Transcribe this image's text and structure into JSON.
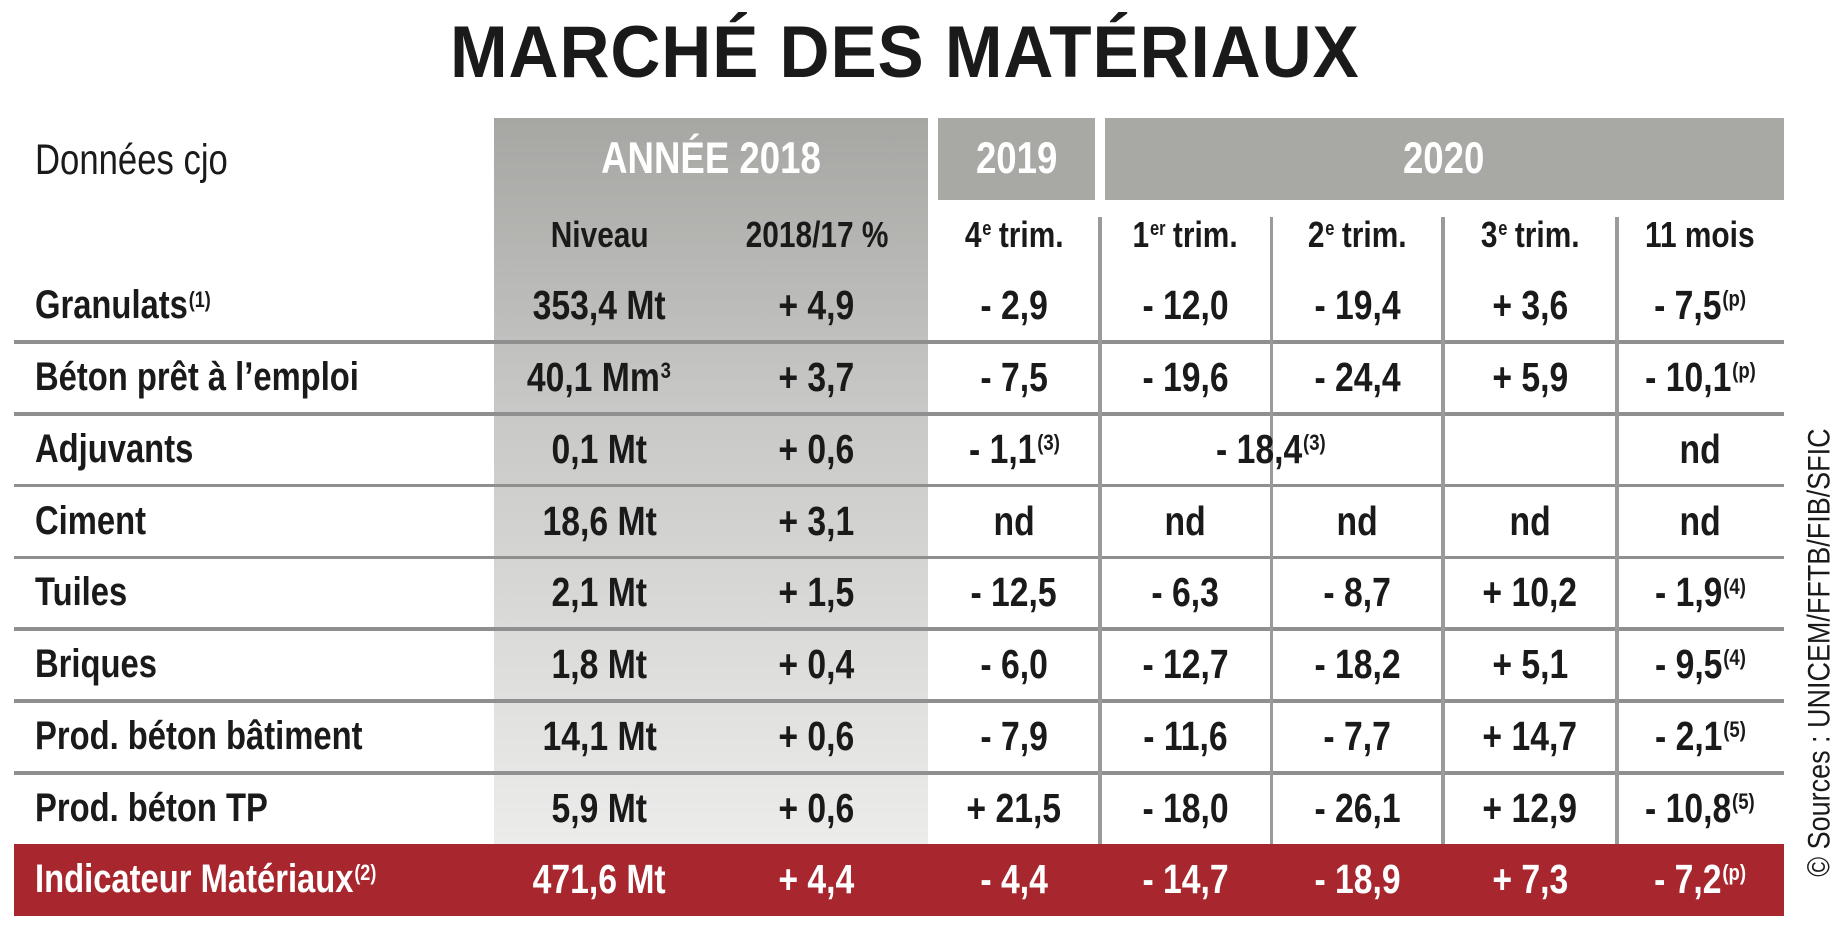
{
  "title": "MARCHÉ DES MATÉRIAUX",
  "corner": "Données cjo",
  "groups": [
    "ANNÉE 2018",
    "2019",
    "2020"
  ],
  "columns": [
    {
      "t": "Niveau"
    },
    {
      "t": "2018/17 %"
    },
    {
      "t": "4",
      "sup": "e",
      "after": "trim."
    },
    {
      "t": "1",
      "sup": "er",
      "after": "trim."
    },
    {
      "t": "2",
      "sup": "e",
      "after": "trim."
    },
    {
      "t": "3",
      "sup": "e",
      "after": "trim."
    },
    {
      "t": "11 mois"
    }
  ],
  "rows": [
    {
      "label": "Granulats",
      "note": "(1)",
      "cells": [
        {
          "t": "353,4 Mt"
        },
        {
          "t": "+ 4,9"
        },
        {
          "t": "- 2,9"
        },
        {
          "t": "- 12,0"
        },
        {
          "t": "- 19,4"
        },
        {
          "t": "+ 3,6"
        },
        {
          "t": "- 7,5",
          "sup": "(p)"
        }
      ]
    },
    {
      "label": "Béton prêt à l’emploi",
      "cells": [
        {
          "t": "40,1 Mm",
          "sup": "3"
        },
        {
          "t": "+ 3,7"
        },
        {
          "t": "- 7,5"
        },
        {
          "t": "- 19,6"
        },
        {
          "t": "- 24,4"
        },
        {
          "t": "+ 5,9"
        },
        {
          "t": "- 10,1",
          "sup": "(p)"
        }
      ]
    },
    {
      "label": "Adjuvants",
      "cells": [
        {
          "t": "0,1 Mt"
        },
        {
          "t": "+ 0,6"
        },
        {
          "t": "- 1,1",
          "sup": "(3)"
        },
        {
          "t": "- 18,4",
          "sup": "(3)",
          "span": 2
        },
        null,
        {
          "t": "nd"
        }
      ]
    },
    {
      "label": "Ciment",
      "cells": [
        {
          "t": "18,6 Mt"
        },
        {
          "t": "+ 3,1"
        },
        {
          "t": "nd"
        },
        {
          "t": "nd"
        },
        {
          "t": "nd"
        },
        {
          "t": "nd"
        },
        {
          "t": "nd"
        }
      ]
    },
    {
      "label": "Tuiles",
      "cells": [
        {
          "t": "2,1 Mt"
        },
        {
          "t": "+ 1,5"
        },
        {
          "t": "- 12,5"
        },
        {
          "t": "- 6,3"
        },
        {
          "t": "- 8,7"
        },
        {
          "t": "+ 10,2"
        },
        {
          "t": "- 1,9",
          "sup": "(4)"
        }
      ]
    },
    {
      "label": "Briques",
      "cells": [
        {
          "t": "1,8 Mt"
        },
        {
          "t": "+ 0,4"
        },
        {
          "t": "- 6,0"
        },
        {
          "t": "- 12,7"
        },
        {
          "t": "- 18,2"
        },
        {
          "t": "+ 5,1"
        },
        {
          "t": "- 9,5",
          "sup": "(4)"
        }
      ]
    },
    {
      "label": "Prod. béton bâtiment",
      "cells": [
        {
          "t": "14,1 Mt"
        },
        {
          "t": "+ 0,6"
        },
        {
          "t": "- 7,9"
        },
        {
          "t": "- 11,6"
        },
        {
          "t": "- 7,7"
        },
        {
          "t": "+ 14,7"
        },
        {
          "t": "- 2,1",
          "sup": "(5)"
        }
      ]
    },
    {
      "label": "Prod. béton TP",
      "cells": [
        {
          "t": "5,9 Mt"
        },
        {
          "t": "+ 0,6"
        },
        {
          "t": "+ 21,5"
        },
        {
          "t": "- 18,0"
        },
        {
          "t": "- 26,1"
        },
        {
          "t": "+ 12,9"
        },
        {
          "t": "- 10,8",
          "sup": "(5)"
        }
      ]
    }
  ],
  "total": {
    "label": "Indicateur Matériaux",
    "note": "(2)",
    "cells": [
      {
        "t": "471,6 Mt"
      },
      {
        "t": "+ 4,4"
      },
      {
        "t": "- 4,4"
      },
      {
        "t": "- 14,7"
      },
      {
        "t": "- 18,9"
      },
      {
        "t": "+ 7,3"
      },
      {
        "t": "- 7,2",
        "sup": "(p)"
      }
    ]
  },
  "source": "© Sources : UNICEM/FFTB/FIB/SFIC"
}
